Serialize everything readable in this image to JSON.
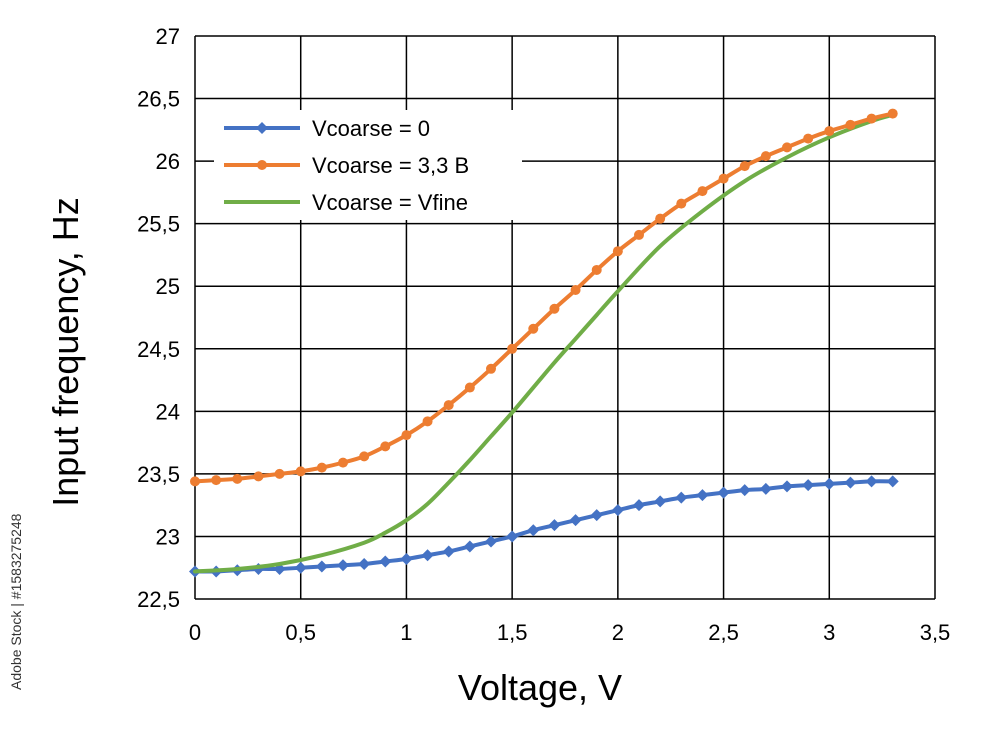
{
  "watermark": "Adobe Stock | #1583275248",
  "chart_data": {
    "type": "line",
    "xlabel": "Voltage, V",
    "ylabel": "Input frequency, Hz",
    "xlim": [
      0,
      3.5
    ],
    "ylim": [
      22.5,
      27
    ],
    "grid": true,
    "legend_position": "top-left",
    "x_ticks": [
      "0",
      "0,5",
      "1",
      "1,5",
      "2",
      "2,5",
      "3",
      "3,5"
    ],
    "y_ticks": [
      "22,5",
      "23",
      "23,5",
      "24",
      "24,5",
      "25",
      "25,5",
      "26",
      "26,5",
      "27"
    ],
    "series": [
      {
        "name": "Vcoarse = 0",
        "color": "#4472c4",
        "marker": "diamond",
        "x": [
          0,
          0.1,
          0.2,
          0.3,
          0.4,
          0.5,
          0.6,
          0.7,
          0.8,
          0.9,
          1.0,
          1.1,
          1.2,
          1.3,
          1.4,
          1.5,
          1.6,
          1.7,
          1.8,
          1.9,
          2.0,
          2.1,
          2.2,
          2.3,
          2.4,
          2.5,
          2.6,
          2.7,
          2.8,
          2.9,
          3.0,
          3.1,
          3.2,
          3.3
        ],
        "y": [
          22.72,
          22.72,
          22.73,
          22.74,
          22.74,
          22.75,
          22.76,
          22.77,
          22.78,
          22.8,
          22.82,
          22.85,
          22.88,
          22.92,
          22.96,
          23.0,
          23.05,
          23.09,
          23.13,
          23.17,
          23.21,
          23.25,
          23.28,
          23.31,
          23.33,
          23.35,
          23.37,
          23.38,
          23.4,
          23.41,
          23.42,
          23.43,
          23.44,
          23.44
        ]
      },
      {
        "name": "Vcoarse = 3,3 В",
        "color": "#ed7d31",
        "marker": "circle",
        "x": [
          0,
          0.1,
          0.2,
          0.3,
          0.4,
          0.5,
          0.6,
          0.7,
          0.8,
          0.9,
          1.0,
          1.1,
          1.2,
          1.3,
          1.4,
          1.5,
          1.6,
          1.7,
          1.8,
          1.9,
          2.0,
          2.1,
          2.2,
          2.3,
          2.4,
          2.5,
          2.6,
          2.7,
          2.8,
          2.9,
          3.0,
          3.1,
          3.2,
          3.3
        ],
        "y": [
          23.44,
          23.45,
          23.46,
          23.48,
          23.5,
          23.52,
          23.55,
          23.59,
          23.64,
          23.72,
          23.81,
          23.92,
          24.05,
          24.19,
          24.34,
          24.5,
          24.66,
          24.82,
          24.97,
          25.13,
          25.28,
          25.41,
          25.54,
          25.66,
          25.76,
          25.86,
          25.96,
          26.04,
          26.11,
          26.18,
          26.24,
          26.29,
          26.34,
          26.38
        ]
      },
      {
        "name": "Vcoarse = Vfine",
        "color": "#70ad47",
        "marker": "none",
        "x": [
          0,
          0.2,
          0.4,
          0.6,
          0.8,
          0.9,
          1.0,
          1.1,
          1.2,
          1.3,
          1.4,
          1.5,
          1.6,
          1.7,
          1.8,
          1.9,
          2.0,
          2.2,
          2.4,
          2.6,
          2.8,
          3.0,
          3.2,
          3.3
        ],
        "y": [
          22.72,
          22.74,
          22.78,
          22.85,
          22.95,
          23.03,
          23.13,
          23.26,
          23.43,
          23.61,
          23.8,
          23.99,
          24.19,
          24.39,
          24.58,
          24.77,
          24.96,
          25.32,
          25.6,
          25.84,
          26.03,
          26.19,
          26.32,
          26.37
        ]
      }
    ]
  }
}
